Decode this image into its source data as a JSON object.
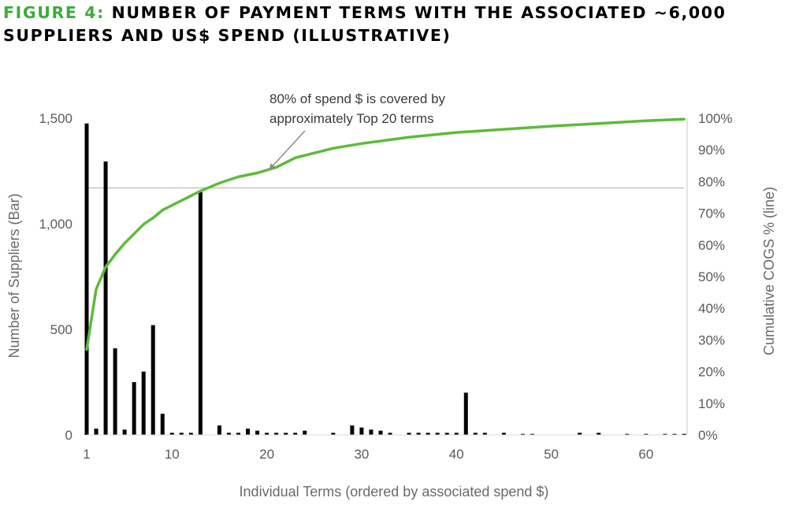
{
  "title": {
    "prefix": "FIGURE 4:",
    "text": "NUMBER OF PAYMENT TERMS WITH THE ASSOCIATED ~6,000 SUPPLIERS AND US$ SPEND (ILLUSTRATIVE)"
  },
  "colors": {
    "bar": "#000000",
    "line": "#5dba3b",
    "title_accent": "#3daa3d",
    "reference_line": "#b0b0b0",
    "arrow": "#8a8a8a"
  },
  "chart_data": {
    "type": "bar+line",
    "xlabel": "Individual Terms (ordered by associated spend $)",
    "ylabel_left": "Number of Suppliers (Bar)",
    "ylabel_right": "Cumulative COGS % (line)",
    "x_ticks": [
      "1",
      "10",
      "20",
      "30",
      "40",
      "50",
      "60"
    ],
    "x_tick_values": [
      1,
      10,
      20,
      30,
      40,
      50,
      60
    ],
    "xlim": [
      1,
      64
    ],
    "y_left_ticks": [
      "0",
      "500",
      "1,000",
      "1,500"
    ],
    "y_left_tick_values": [
      0,
      500,
      1000,
      1500
    ],
    "ylim_left": [
      0,
      1500
    ],
    "y_right_ticks": [
      "0%",
      "10%",
      "20%",
      "30%",
      "40%",
      "50%",
      "60%",
      "70%",
      "80%",
      "90%",
      "100%"
    ],
    "y_right_tick_values": [
      0,
      10,
      20,
      30,
      40,
      50,
      60,
      70,
      80,
      90,
      100
    ],
    "ylim_right": [
      0,
      100
    ],
    "reference_line_y_percent": 78,
    "annotation": {
      "lines": [
        "80% of spend $ is covered by",
        "approximately Top 20 terms"
      ],
      "points_to": {
        "x": 20,
        "y_percent": 83
      }
    },
    "bars": {
      "name": "Number of Suppliers",
      "x": [
        1,
        2,
        3,
        4,
        5,
        6,
        7,
        8,
        9,
        10,
        11,
        12,
        13,
        15,
        16,
        17,
        18,
        19,
        20,
        21,
        22,
        23,
        24,
        27,
        29,
        30,
        31,
        32,
        33,
        35,
        36,
        37,
        38,
        39,
        40,
        41,
        42,
        43,
        45,
        47,
        48,
        53,
        55,
        58,
        60,
        62,
        63,
        64
      ],
      "values": [
        1475,
        30,
        1295,
        410,
        25,
        250,
        300,
        520,
        100,
        10,
        10,
        10,
        1150,
        45,
        10,
        10,
        30,
        20,
        10,
        10,
        10,
        10,
        20,
        10,
        45,
        35,
        25,
        20,
        10,
        10,
        10,
        10,
        10,
        10,
        10,
        200,
        10,
        10,
        10,
        5,
        5,
        10,
        10,
        5,
        5,
        5,
        5,
        5
      ]
    },
    "line": {
      "name": "Cumulative COGS %",
      "x": [
        1,
        2,
        3,
        4,
        5,
        6,
        7,
        8,
        9,
        10,
        11,
        13,
        15,
        17,
        19,
        21,
        23,
        25,
        27,
        30,
        35,
        40,
        45,
        50,
        55,
        60,
        64
      ],
      "values": [
        27,
        46,
        53,
        57,
        60.5,
        63.5,
        66.5,
        68.5,
        71,
        72.5,
        74,
        77,
        79.5,
        81.5,
        82.7,
        84.5,
        87.5,
        89,
        90.5,
        92,
        94,
        95.5,
        96.5,
        97.5,
        98.3,
        99.2,
        99.7
      ]
    }
  }
}
